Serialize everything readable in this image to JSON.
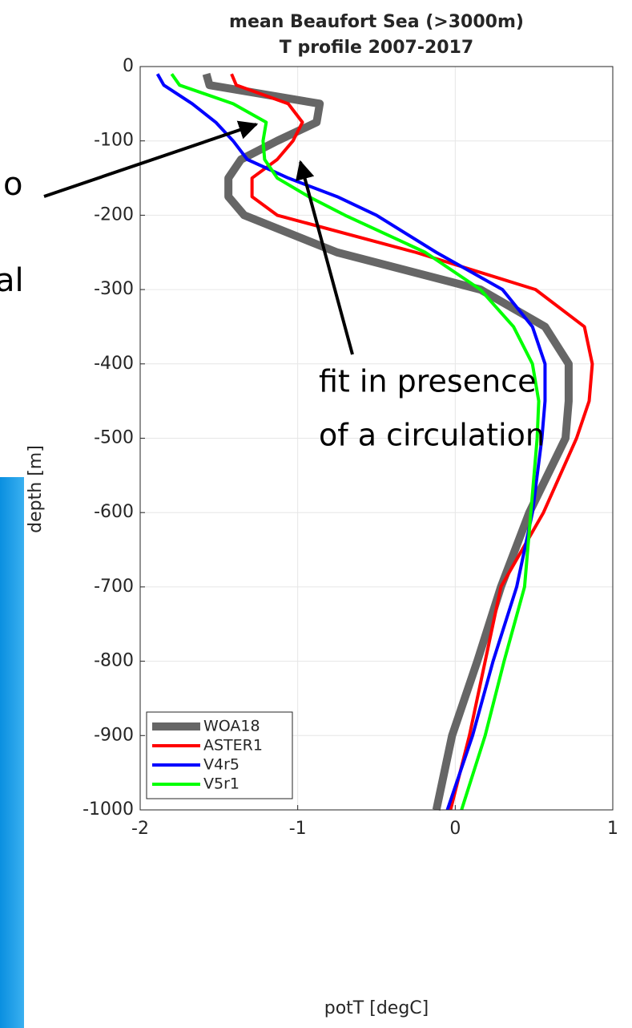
{
  "chart_data": {
    "type": "line",
    "title": [
      "mean Beaufort Sea (>3000m)",
      "T profile 2007-2017"
    ],
    "xlabel": "potT [degC]",
    "ylabel": "depth [m]",
    "y": [
      -10,
      -25,
      -50,
      -75,
      -100,
      -125,
      -150,
      -175,
      -200,
      -250,
      -300,
      -350,
      -400,
      -450,
      -500,
      -600,
      -700,
      -800,
      -900,
      -1000
    ],
    "series": [
      {
        "name": "WOA18",
        "color": "#666666",
        "values": [
          -1.58,
          -1.56,
          -0.86,
          -0.88,
          -1.13,
          -1.36,
          -1.44,
          -1.44,
          -1.34,
          -0.75,
          0.16,
          0.57,
          0.72,
          0.72,
          0.7,
          0.47,
          0.29,
          0.14,
          -0.02,
          -0.12
        ]
      },
      {
        "name": "ASTER1",
        "color": "#ff0000",
        "values": [
          -1.42,
          -1.39,
          -1.06,
          -0.97,
          -1.03,
          -1.13,
          -1.29,
          -1.29,
          -1.13,
          -0.25,
          0.51,
          0.82,
          0.87,
          0.85,
          0.77,
          0.56,
          0.29,
          0.19,
          0.09,
          -0.03
        ]
      },
      {
        "name": "V4r5",
        "color": "#0000ff",
        "values": [
          -1.89,
          -1.85,
          -1.67,
          -1.52,
          -1.41,
          -1.32,
          -1.06,
          -0.75,
          -0.5,
          -0.12,
          0.3,
          0.49,
          0.57,
          0.57,
          0.55,
          0.49,
          0.39,
          0.24,
          0.11,
          -0.05
        ]
      },
      {
        "name": "V5r1",
        "color": "#00ff00",
        "values": [
          -1.8,
          -1.75,
          -1.41,
          -1.2,
          -1.22,
          -1.21,
          -1.13,
          -0.93,
          -0.7,
          -0.19,
          0.16,
          0.37,
          0.49,
          0.53,
          0.52,
          0.48,
          0.44,
          0.31,
          0.19,
          0.04
        ]
      }
    ],
    "xlim": [
      -2,
      1
    ],
    "xticks": [
      -2,
      -1,
      0,
      1
    ],
    "ylim": [
      -1000,
      0
    ],
    "yticks": [
      0,
      -100,
      -200,
      -300,
      -400,
      -500,
      -600,
      -700,
      -800,
      -900,
      -1000
    ],
    "grid": true,
    "legend": "southwest",
    "annotations": [
      "fit in presence",
      "of a circulation"
    ],
    "cropped_text": [
      "o",
      "al"
    ]
  }
}
